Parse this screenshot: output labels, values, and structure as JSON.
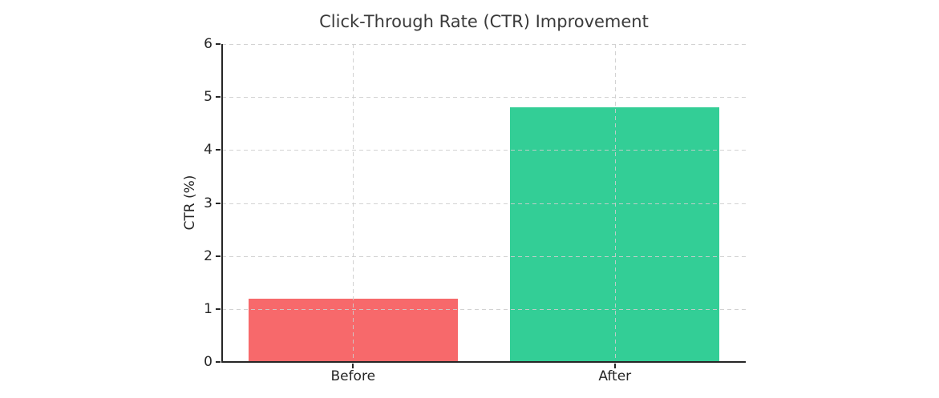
{
  "chart_data": {
    "type": "bar",
    "title": "Click-Through Rate (CTR) Improvement",
    "xlabel": "",
    "ylabel": "CTR (%)",
    "categories": [
      "Before",
      "After"
    ],
    "values": [
      1.2,
      4.8
    ],
    "bar_colors": [
      "#f7696b",
      "#33ce96"
    ],
    "ylim": [
      0,
      6
    ],
    "yticks": [
      0,
      1,
      2,
      3,
      4,
      5,
      6
    ],
    "grid": true,
    "grid_style": "dashed",
    "grid_color": "#cdcdcd",
    "axis_color": "#262626",
    "background": "#ffffff",
    "legend": false
  }
}
